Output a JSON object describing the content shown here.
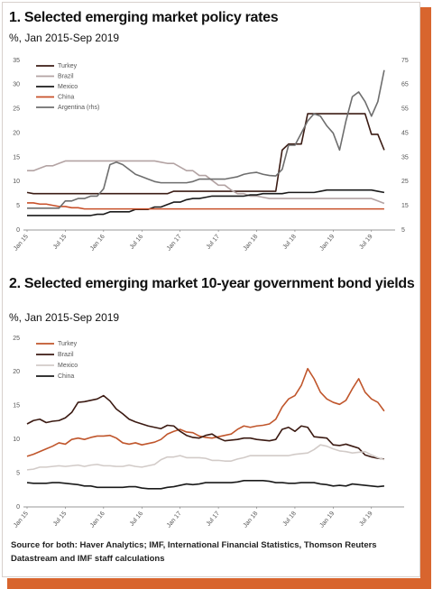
{
  "chart_data": [
    {
      "type": "line",
      "title": "1. Selected emerging market policy rates",
      "subtitle": "%, Jan 2015-Sep 2019",
      "categories": [
        "Jan 15",
        null,
        null,
        null,
        null,
        null,
        "Jul 15",
        null,
        null,
        null,
        null,
        null,
        "Jan 16",
        null,
        null,
        null,
        null,
        null,
        "Jul 16",
        null,
        null,
        null,
        null,
        null,
        "Jan 17",
        null,
        null,
        null,
        null,
        null,
        "Jul 17",
        null,
        null,
        null,
        null,
        null,
        "Jan 18",
        null,
        null,
        null,
        null,
        null,
        "Jul 18",
        null,
        null,
        null,
        null,
        null,
        "Jan 19",
        null,
        null,
        null,
        null,
        null,
        "Jul 19",
        null,
        null
      ],
      "ylim": [
        0,
        35
      ],
      "yticks": [
        0,
        5,
        10,
        15,
        20,
        25,
        30,
        35
      ],
      "y2lim": [
        5,
        75
      ],
      "y2ticks": [
        5,
        15,
        25,
        35,
        45,
        55,
        65,
        75
      ],
      "grid": false,
      "legend": "top-left",
      "series": [
        {
          "name": "Turkey",
          "color": "#3b1c14",
          "values": [
            7.75,
            7.5,
            7.5,
            7.5,
            7.5,
            7.5,
            7.5,
            7.5,
            7.5,
            7.5,
            7.5,
            7.5,
            7.5,
            7.5,
            7.5,
            7.5,
            7.5,
            7.5,
            7.5,
            7.5,
            7.5,
            7.5,
            7.5,
            8,
            8,
            8,
            8,
            8,
            8,
            8,
            8,
            8,
            8,
            8,
            8,
            8,
            8,
            8,
            8,
            8,
            16.5,
            17.75,
            17.75,
            17.75,
            24,
            24,
            24,
            24,
            24,
            24,
            24,
            24,
            24,
            24,
            19.75,
            19.75,
            16.5
          ]
        },
        {
          "name": "Brazil",
          "color": "#b3a3a3",
          "values": [
            12.25,
            12.25,
            12.75,
            13.25,
            13.25,
            13.75,
            14.25,
            14.25,
            14.25,
            14.25,
            14.25,
            14.25,
            14.25,
            14.25,
            14.25,
            14.25,
            14.25,
            14.25,
            14.25,
            14.25,
            14.25,
            14,
            13.75,
            13.75,
            13,
            12.25,
            12.25,
            11.25,
            11.25,
            10.25,
            9.25,
            9.25,
            8.25,
            7.5,
            7.5,
            7,
            7,
            6.75,
            6.5,
            6.5,
            6.5,
            6.5,
            6.5,
            6.5,
            6.5,
            6.5,
            6.5,
            6.5,
            6.5,
            6.5,
            6.5,
            6.5,
            6.5,
            6.5,
            6.5,
            6,
            5.5
          ]
        },
        {
          "name": "Mexico",
          "color": "#1a1a1a",
          "values": [
            3,
            3,
            3,
            3,
            3,
            3,
            3,
            3,
            3,
            3,
            3,
            3.25,
            3.25,
            3.75,
            3.75,
            3.75,
            3.75,
            4.25,
            4.25,
            4.25,
            4.75,
            4.75,
            5.25,
            5.75,
            5.75,
            6.25,
            6.5,
            6.5,
            6.75,
            7,
            7,
            7,
            7,
            7,
            7,
            7.25,
            7.25,
            7.5,
            7.5,
            7.5,
            7.5,
            7.75,
            7.75,
            7.75,
            7.75,
            7.75,
            8,
            8.25,
            8.25,
            8.25,
            8.25,
            8.25,
            8.25,
            8.25,
            8.25,
            8,
            7.75
          ]
        },
        {
          "name": "China",
          "color": "#c8502a",
          "values": [
            5.6,
            5.6,
            5.35,
            5.35,
            5.1,
            4.85,
            4.85,
            4.6,
            4.6,
            4.35,
            4.35,
            4.35,
            4.35,
            4.35,
            4.35,
            4.35,
            4.35,
            4.35,
            4.35,
            4.35,
            4.35,
            4.35,
            4.35,
            4.35,
            4.35,
            4.35,
            4.35,
            4.35,
            4.35,
            4.35,
            4.35,
            4.35,
            4.35,
            4.35,
            4.35,
            4.35,
            4.35,
            4.35,
            4.35,
            4.35,
            4.35,
            4.35,
            4.35,
            4.35,
            4.35,
            4.35,
            4.35,
            4.35,
            4.35,
            4.35,
            4.35,
            4.35,
            4.35,
            4.35,
            4.35,
            4.35,
            4.35
          ]
        },
        {
          "name": "Argentina (rhs)",
          "color": "#6e6e6e",
          "axis": "y2",
          "values": [
            14,
            14,
            14,
            14,
            14,
            14,
            17,
            17,
            18,
            18,
            19,
            19,
            22,
            32,
            33,
            32,
            30,
            28,
            27,
            26,
            25,
            24.5,
            24.5,
            24.5,
            24.5,
            24.5,
            25,
            26,
            26,
            26,
            26,
            26,
            26.5,
            27,
            28,
            28.5,
            28.8,
            28,
            27.5,
            27.3,
            30,
            40,
            40,
            45,
            50,
            53,
            52,
            48,
            45,
            38,
            50,
            60,
            62,
            58,
            52,
            58,
            71
          ]
        }
      ]
    },
    {
      "type": "line",
      "title": "2. Selected emerging market 10-year government bond yields",
      "subtitle": "%, Jan 2015-Sep 2019",
      "categories": [
        "Jan 15",
        null,
        null,
        null,
        null,
        null,
        "Jul 15",
        null,
        null,
        null,
        null,
        null,
        "Jan 16",
        null,
        null,
        null,
        null,
        null,
        "Jul 16",
        null,
        null,
        null,
        null,
        null,
        "Jan 17",
        null,
        null,
        null,
        null,
        null,
        "Jul 17",
        null,
        null,
        null,
        null,
        null,
        "Jan 18",
        null,
        null,
        null,
        null,
        null,
        "Jul 18",
        null,
        null,
        null,
        null,
        null,
        "Jan 19",
        null,
        null,
        null,
        null,
        null,
        "Jul 19",
        null,
        null
      ],
      "ylim": [
        0,
        25
      ],
      "yticks": [
        0,
        5,
        10,
        15,
        20,
        25
      ],
      "grid": false,
      "legend": "top-left",
      "series": [
        {
          "name": "Turkey",
          "color": "#c0562c",
          "values": [
            7.5,
            7.8,
            8.2,
            8.6,
            9,
            9.5,
            9.3,
            10,
            10.2,
            10,
            10.3,
            10.5,
            10.5,
            10.6,
            10.2,
            9.5,
            9.3,
            9.5,
            9.2,
            9.4,
            9.6,
            10,
            10.8,
            11.2,
            11.5,
            11.1,
            11,
            10.5,
            10.3,
            10.2,
            10.4,
            10.6,
            10.8,
            11.5,
            12,
            11.8,
            12,
            12.1,
            12.3,
            13,
            14.8,
            16,
            16.5,
            18,
            20.5,
            19,
            17,
            16,
            15.5,
            15.2,
            15.8,
            17.5,
            19,
            17,
            16,
            15.5,
            14.2
          ]
        },
        {
          "name": "Brazil",
          "color": "#3b1a12",
          "values": [
            12.3,
            12.8,
            13,
            12.5,
            12.7,
            12.8,
            13.2,
            14,
            15.5,
            15.6,
            15.8,
            16,
            16.5,
            15.7,
            14.5,
            13.8,
            13,
            12.6,
            12.3,
            12,
            11.8,
            11.6,
            12.1,
            12,
            11.2,
            10.6,
            10.3,
            10.2,
            10.6,
            10.8,
            10.2,
            9.8,
            9.9,
            10,
            10.2,
            10.2,
            10,
            9.9,
            9.8,
            10,
            11.5,
            11.8,
            11.2,
            12,
            11.8,
            10.4,
            10.3,
            10.2,
            9.2,
            9.1,
            9.3,
            9,
            8.7,
            7.7,
            7.4,
            7.2,
            7.1
          ]
        },
        {
          "name": "Mexico",
          "color": "#d2cbc8",
          "values": [
            5.5,
            5.6,
            5.9,
            5.9,
            6,
            6.1,
            6,
            6.1,
            6.2,
            6,
            6.2,
            6.3,
            6.1,
            6.1,
            6,
            6,
            6.2,
            6,
            5.9,
            6.1,
            6.3,
            7,
            7.4,
            7.4,
            7.6,
            7.3,
            7.3,
            7.3,
            7.2,
            6.9,
            6.9,
            6.8,
            6.8,
            7.1,
            7.3,
            7.6,
            7.6,
            7.6,
            7.6,
            7.6,
            7.6,
            7.6,
            7.8,
            7.9,
            8,
            8.5,
            9.2,
            9,
            8.6,
            8.3,
            8.2,
            8,
            8.1,
            8.2,
            7.7,
            7.3,
            7
          ]
        },
        {
          "name": "China",
          "color": "#1a1a1a",
          "values": [
            3.6,
            3.5,
            3.5,
            3.5,
            3.6,
            3.6,
            3.5,
            3.4,
            3.3,
            3.1,
            3.1,
            2.9,
            2.9,
            2.9,
            2.9,
            2.9,
            3,
            3,
            2.8,
            2.7,
            2.7,
            2.7,
            2.9,
            3,
            3.2,
            3.4,
            3.3,
            3.4,
            3.6,
            3.6,
            3.6,
            3.6,
            3.6,
            3.7,
            3.9,
            3.9,
            3.9,
            3.9,
            3.8,
            3.6,
            3.6,
            3.5,
            3.5,
            3.6,
            3.6,
            3.6,
            3.4,
            3.3,
            3.1,
            3.2,
            3.1,
            3.4,
            3.3,
            3.2,
            3.1,
            3,
            3.1
          ]
        }
      ]
    }
  ],
  "source": "Source for both: Haver Analytics; IMF, International Financial Statistics, Thomson Reuters Datastream and IMF staff calculations"
}
